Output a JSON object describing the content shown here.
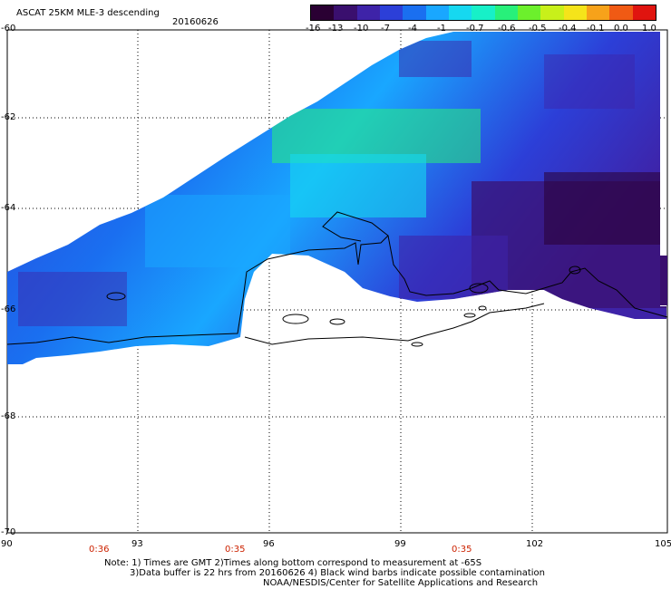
{
  "header": {
    "title": "ASCAT 25KM MLE-3 descending",
    "date": "20160626"
  },
  "colorbar": {
    "colors": [
      "#2a0033",
      "#3a0f6e",
      "#3e23a8",
      "#2c3fd8",
      "#1a6ff0",
      "#19a7ff",
      "#16d8f0",
      "#17f0c8",
      "#28f07a",
      "#6cf02c",
      "#c8f01a",
      "#f5e41a",
      "#f7a21a",
      "#f05a14",
      "#e0140f"
    ],
    "labels": [
      "-16",
      "-13",
      "-10",
      "-7",
      "-4",
      "-1",
      "-0.7",
      "-0.6",
      "-0.5",
      "-0.4",
      "-0.1",
      "0.0",
      "1.0"
    ]
  },
  "axes": {
    "y_labels": [
      "-60",
      "-62",
      "-64",
      "-66",
      "-68",
      "-70"
    ],
    "x_labels": [
      "90",
      "93",
      "96",
      "99",
      "102",
      "105"
    ]
  },
  "times": [
    "0:36",
    "0:35",
    "0:35"
  ],
  "notes": {
    "line1": "Note: 1) Times are GMT 2)Times along bottom correspond to measurement at -65S",
    "line2": "3)Data buffer is 22 hrs from 20160626 4) Black wind barbs indicate possible contamination",
    "line3": "NOAA/NESDIS/Center for Satellite Applications and Research"
  }
}
